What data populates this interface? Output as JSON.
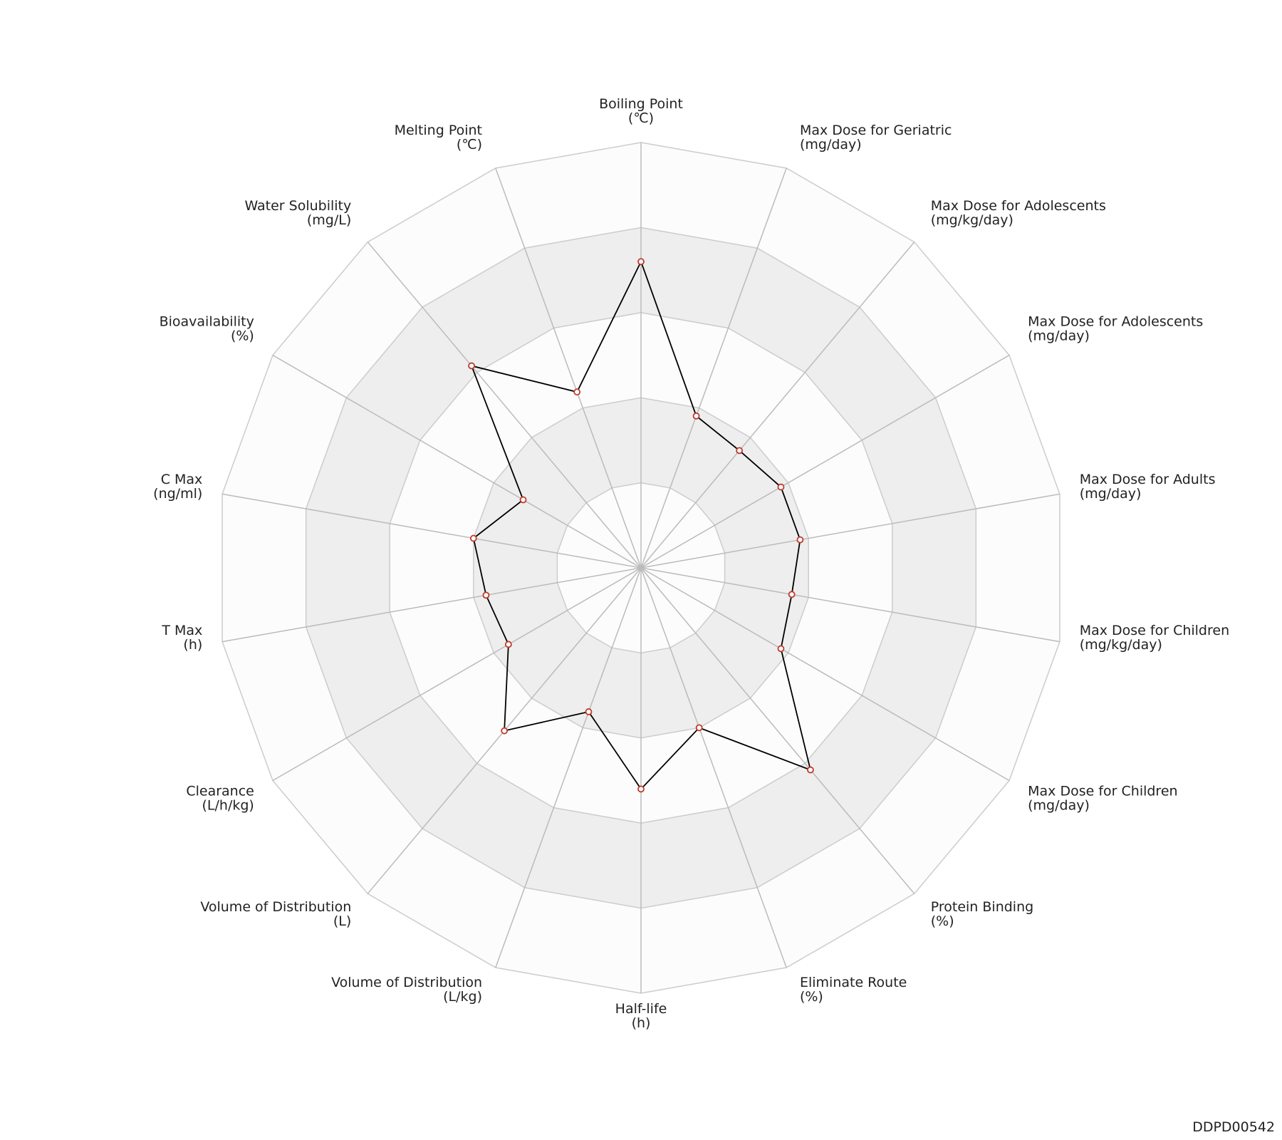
{
  "chart_data": {
    "type": "radar",
    "categories": [
      "Boiling Point",
      "Max Dose for Geriatric",
      "Max Dose for Adolescents",
      "Max Dose for Adolescents",
      "Max Dose for Adults",
      "Max Dose for Children",
      "Max Dose for Children",
      "Protein Binding",
      "Eliminate Route",
      "Half-life",
      "Volume of Distribution",
      "Volume of Distribution",
      "Clearance",
      "T Max",
      "C Max",
      "Bioavailability",
      "Water Solubility",
      "Melting Point"
    ],
    "units": [
      "(℃)",
      "(mg/day)",
      "(mg/kg/day)",
      "(mg/day)",
      "(mg/day)",
      "(mg/kg/day)",
      "(mg/day)",
      "(%)",
      "(%)",
      "(h)",
      "(L/kg)",
      "(L)",
      "(L/h/kg)",
      "(h)",
      "(ng/ml)",
      "(%)",
      "(mg/L)",
      "(℃)"
    ],
    "values": [
      3.6,
      1.9,
      1.8,
      1.9,
      1.9,
      1.8,
      1.9,
      3.1,
      2.0,
      2.6,
      1.8,
      2.5,
      1.8,
      1.85,
      2.0,
      1.6,
      3.1,
      2.2
    ],
    "ylim": [
      0,
      5
    ],
    "yticks": [
      1,
      2,
      3,
      4,
      5
    ],
    "color": "#000000",
    "marker_color": "#c0392b",
    "band_colors": [
      "#fcfcfc",
      "#eeeeee"
    ],
    "footer": "DDPD00542"
  }
}
